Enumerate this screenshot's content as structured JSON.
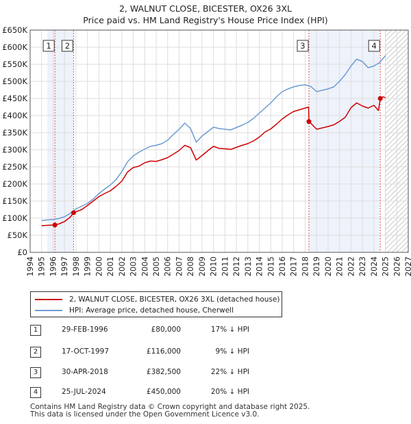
{
  "title_line1": "2, WALNUT CLOSE, BICESTER, OX26 3XL",
  "title_line2": "Price paid vs. HM Land Registry's House Price Index (HPI)",
  "chart_data": {
    "type": "line",
    "ylim": [
      0,
      650000
    ],
    "xlim": [
      1994,
      2027
    ],
    "y_ticks": [
      0,
      50000,
      100000,
      150000,
      200000,
      250000,
      300000,
      350000,
      400000,
      450000,
      500000,
      550000,
      600000,
      650000
    ],
    "y_tick_labels": [
      "£0",
      "£50K",
      "£100K",
      "£150K",
      "£200K",
      "£250K",
      "£300K",
      "£350K",
      "£400K",
      "£450K",
      "£500K",
      "£550K",
      "£600K",
      "£650K"
    ],
    "x_ticks": [
      1994,
      1995,
      1996,
      1997,
      1998,
      1999,
      2000,
      2001,
      2002,
      2003,
      2004,
      2005,
      2006,
      2007,
      2008,
      2009,
      2010,
      2011,
      2012,
      2013,
      2014,
      2015,
      2016,
      2017,
      2018,
      2019,
      2020,
      2021,
      2022,
      2023,
      2024,
      2025,
      2026,
      2027
    ],
    "x_tick_labels": [
      "1994",
      "1995",
      "1996",
      "1997",
      "1998",
      "1999",
      "2000",
      "2001",
      "2002",
      "2003",
      "2004",
      "2005",
      "2006",
      "2007",
      "2008",
      "2009",
      "2010",
      "2011",
      "2012",
      "2013",
      "2014",
      "2015",
      "2016",
      "2017",
      "2018",
      "2019",
      "2020",
      "2021",
      "2022",
      "2023",
      "2024",
      "2025",
      "2026",
      "2027"
    ],
    "data_end_year": 2025.0,
    "series": [
      {
        "name": "2, WALNUT CLOSE, BICESTER, OX26 3XL (detached house)",
        "color": "#cc0000",
        "x": [
          1995.0,
          1995.5,
          1996.16,
          1996.5,
          1997.0,
          1997.5,
          1997.79,
          1998.5,
          1999.0,
          1999.5,
          2000.0,
          2000.5,
          2001.0,
          2001.5,
          2002.0,
          2002.5,
          2003.0,
          2003.5,
          2004.0,
          2004.5,
          2005.0,
          2005.5,
          2006.0,
          2006.5,
          2007.0,
          2007.5,
          2008.0,
          2008.5,
          2009.0,
          2009.5,
          2010.0,
          2010.5,
          2011.0,
          2011.5,
          2012.0,
          2012.5,
          2013.0,
          2013.5,
          2014.0,
          2014.5,
          2015.0,
          2015.5,
          2016.0,
          2016.5,
          2017.0,
          2017.5,
          2018.0,
          2018.3,
          2018.33,
          2018.6,
          2019.0,
          2019.5,
          2020.0,
          2020.5,
          2021.0,
          2021.5,
          2022.0,
          2022.5,
          2023.0,
          2023.5,
          2024.0,
          2024.4,
          2024.56,
          2024.8,
          2025.0
        ],
        "values": [
          78000,
          79000,
          80000,
          83000,
          90000,
          103000,
          116000,
          125000,
          137000,
          150000,
          163000,
          172000,
          180000,
          193000,
          208000,
          235000,
          248000,
          252000,
          262000,
          267000,
          266000,
          271000,
          277000,
          287000,
          298000,
          313000,
          306000,
          270000,
          283000,
          297000,
          310000,
          304000,
          303000,
          301000,
          307000,
          313000,
          318000,
          326000,
          337000,
          352000,
          361000,
          375000,
          390000,
          402000,
          412000,
          417000,
          422000,
          425000,
          382500,
          374000,
          360000,
          364000,
          368000,
          373000,
          383000,
          395000,
          423000,
          437000,
          428000,
          422000,
          430000,
          415000,
          450000,
          455000,
          452000
        ]
      },
      {
        "name": "HPI: Average price, detached house, Cherwell",
        "color": "#6b9bd2",
        "x": [
          1995.0,
          1995.5,
          1996.0,
          1996.5,
          1997.0,
          1997.5,
          1998.0,
          1998.5,
          1999.0,
          1999.5,
          2000.0,
          2000.5,
          2001.0,
          2001.5,
          2002.0,
          2002.5,
          2003.0,
          2003.5,
          2004.0,
          2004.5,
          2005.0,
          2005.5,
          2006.0,
          2006.5,
          2007.0,
          2007.5,
          2008.0,
          2008.5,
          2009.0,
          2009.5,
          2010.0,
          2010.5,
          2011.0,
          2011.5,
          2012.0,
          2012.5,
          2013.0,
          2013.5,
          2014.0,
          2014.5,
          2015.0,
          2015.5,
          2016.0,
          2016.5,
          2017.0,
          2017.5,
          2018.0,
          2018.5,
          2019.0,
          2019.5,
          2020.0,
          2020.5,
          2021.0,
          2021.5,
          2022.0,
          2022.5,
          2023.0,
          2023.5,
          2024.0,
          2024.5,
          2025.0
        ],
        "values": [
          93000,
          95000,
          96000,
          99000,
          104000,
          114000,
          127000,
          135000,
          143000,
          156000,
          172000,
          185000,
          197000,
          213000,
          236000,
          265000,
          282000,
          293000,
          302000,
          310000,
          313000,
          318000,
          328000,
          345000,
          360000,
          378000,
          362000,
          322000,
          340000,
          353000,
          366000,
          362000,
          360000,
          358000,
          365000,
          372000,
          380000,
          392000,
          407000,
          422000,
          437000,
          455000,
          470000,
          478000,
          484000,
          488000,
          490000,
          485000,
          470000,
          474000,
          478000,
          484000,
          500000,
          520000,
          545000,
          565000,
          558000,
          540000,
          545000,
          555000,
          575000
        ]
      }
    ],
    "sale_markers": [
      {
        "label": "1",
        "x": 1996.16,
        "y": 80000
      },
      {
        "label": "2",
        "x": 1997.79,
        "y": 116000
      },
      {
        "label": "3",
        "x": 2018.33,
        "y": 382500
      },
      {
        "label": "4",
        "x": 2024.56,
        "y": 450000
      }
    ],
    "shaded_spans": [
      [
        1995.5,
        1997.79
      ],
      [
        2018.33,
        2024.56
      ]
    ],
    "hatched_future_from": 2025.0
  },
  "legend": {
    "series1": "2, WALNUT CLOSE, BICESTER, OX26 3XL (detached house)",
    "series2": "HPI: Average price, detached house, Cherwell",
    "color1": "#cc0000",
    "color2": "#6b9bd2"
  },
  "sales": [
    {
      "num": "1",
      "date": "29-FEB-1996",
      "price": "£80,000",
      "pct": "17% ↓ HPI"
    },
    {
      "num": "2",
      "date": "17-OCT-1997",
      "price": "£116,000",
      "pct": "9% ↓ HPI"
    },
    {
      "num": "3",
      "date": "30-APR-2018",
      "price": "£382,500",
      "pct": "22% ↓ HPI"
    },
    {
      "num": "4",
      "date": "25-JUL-2024",
      "price": "£450,000",
      "pct": "20% ↓ HPI"
    }
  ],
  "footer_line1": "Contains HM Land Registry data © Crown copyright and database right 2025.",
  "footer_line2": "This data is licensed under the Open Government Licence v3.0."
}
